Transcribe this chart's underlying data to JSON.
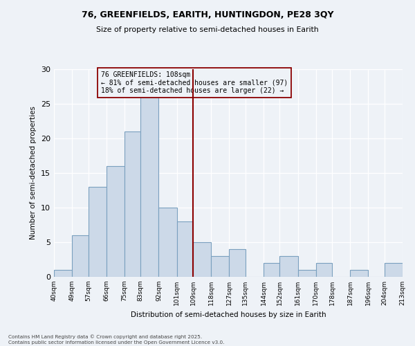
{
  "title1": "76, GREENFIELDS, EARITH, HUNTINGDON, PE28 3QY",
  "title2": "Size of property relative to semi-detached houses in Earith",
  "xlabel": "Distribution of semi-detached houses by size in Earith",
  "ylabel": "Number of semi-detached properties",
  "bar_color": "#ccd9e8",
  "bar_edge_color": "#7aa0bf",
  "vline_color": "#8b0000",
  "vline_x": 109,
  "annotation_title": "76 GREENFIELDS: 108sqm",
  "annotation_line1": "← 81% of semi-detached houses are smaller (97)",
  "annotation_line2": "18% of semi-detached houses are larger (22) →",
  "bins": [
    40,
    49,
    57,
    66,
    75,
    83,
    92,
    101,
    109,
    118,
    127,
    135,
    144,
    152,
    161,
    170,
    178,
    187,
    196,
    204,
    213
  ],
  "counts": [
    1,
    6,
    13,
    16,
    21,
    26,
    10,
    8,
    5,
    3,
    4,
    0,
    2,
    3,
    1,
    2,
    0,
    1,
    0,
    2
  ],
  "ylim": [
    0,
    30
  ],
  "yticks": [
    0,
    5,
    10,
    15,
    20,
    25,
    30
  ],
  "tick_labels": [
    "40sqm",
    "49sqm",
    "57sqm",
    "66sqm",
    "75sqm",
    "83sqm",
    "92sqm",
    "101sqm",
    "109sqm",
    "118sqm",
    "127sqm",
    "135sqm",
    "144sqm",
    "152sqm",
    "161sqm",
    "170sqm",
    "178sqm",
    "187sqm",
    "196sqm",
    "204sqm",
    "213sqm"
  ],
  "footer1": "Contains HM Land Registry data © Crown copyright and database right 2025.",
  "footer2": "Contains public sector information licensed under the Open Government Licence v3.0.",
  "background_color": "#eef2f7"
}
